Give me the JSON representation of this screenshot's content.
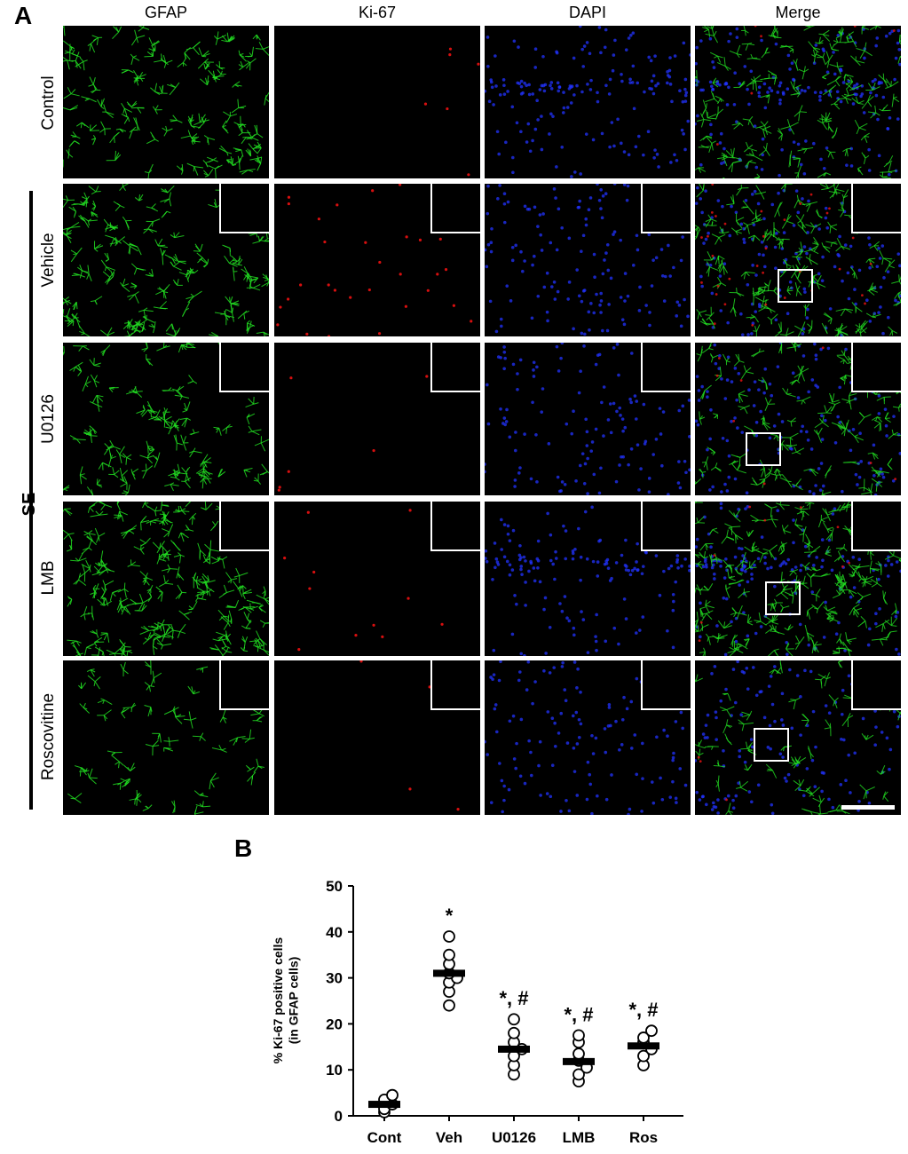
{
  "panel_a_label": "A",
  "panel_b_label": "B",
  "columns": [
    "GFAP",
    "Ki-67",
    "DAPI",
    "Merge"
  ],
  "rows": [
    "Control",
    "Vehicle",
    "U0126",
    "LMB",
    "Roscovitine"
  ],
  "group_label": "SE",
  "colors": {
    "gfap": "#22dd22",
    "ki67": "#ee1111",
    "dapi": "#2233ff"
  },
  "chart_data": {
    "type": "scatter",
    "title": "",
    "xlabel": "",
    "ylabel": "% Ki-67 positive cells\n(in GFAP cells)",
    "categories": [
      "Cont",
      "Veh",
      "U0126",
      "LMB",
      "Ros"
    ],
    "ylim": [
      0,
      50
    ],
    "yticks": [
      0,
      10,
      20,
      30,
      40,
      50
    ],
    "means": [
      2.5,
      31,
      14.5,
      11.8,
      15.2
    ],
    "points": [
      [
        0.8,
        1.5,
        2.5,
        3.5,
        4.5
      ],
      [
        24,
        27,
        29,
        30,
        31,
        33,
        35,
        39
      ],
      [
        9,
        11,
        13,
        14.5,
        16,
        18,
        21
      ],
      [
        7.5,
        9,
        10.5,
        12,
        13.5,
        16,
        17.5
      ],
      [
        11,
        13,
        14.5,
        16,
        17,
        18.5
      ]
    ],
    "annotations": [
      "",
      "*",
      "*, #",
      "*, #",
      "*, #"
    ],
    "grid": false,
    "legend": "none"
  }
}
